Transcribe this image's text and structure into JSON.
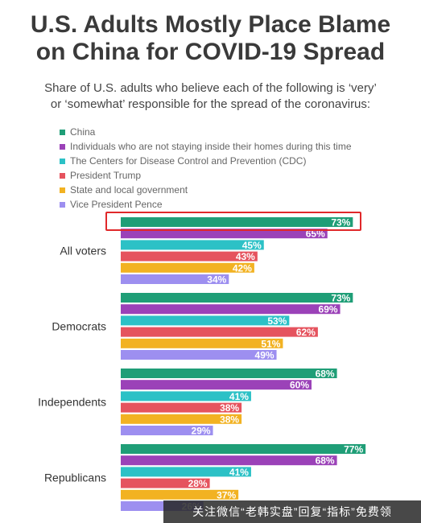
{
  "chart_data": {
    "type": "bar",
    "orientation": "horizontal",
    "title": "U.S. Adults Mostly Place Blame on China for COVID-19 Spread",
    "subtitle": "Share of U.S. adults who believe each of the following is ‘very’ or ‘somewhat’ responsible for the spread of the coronavirus:",
    "categories": [
      "All voters",
      "Democrats",
      "Independents",
      "Republicans"
    ],
    "series": [
      {
        "name": "China",
        "color": "#1f9e77",
        "values": [
          73,
          73,
          68,
          77
        ]
      },
      {
        "name": "Individuals who are not staying inside their homes during this time",
        "color": "#9b42b8",
        "values": [
          65,
          69,
          60,
          68
        ]
      },
      {
        "name": "The Centers for Disease Control and Prevention (CDC)",
        "color": "#2cc1c6",
        "values": [
          45,
          53,
          41,
          41
        ]
      },
      {
        "name": "President Trump",
        "color": "#e5535e",
        "values": [
          43,
          62,
          38,
          28
        ]
      },
      {
        "name": "State and local government",
        "color": "#f2b222",
        "values": [
          42,
          51,
          38,
          37
        ]
      },
      {
        "name": "Vice President Pence",
        "color": "#9d8ff0",
        "values": [
          34,
          49,
          29,
          26
        ]
      }
    ],
    "value_suffix": "%",
    "xlim": [
      0,
      100
    ],
    "grid": false,
    "legend_position": "top-left"
  },
  "annotations": {
    "highlight": "China bar, All voters"
  },
  "watermark": "关注微信“老韩实盘”回复“指标”免费领"
}
